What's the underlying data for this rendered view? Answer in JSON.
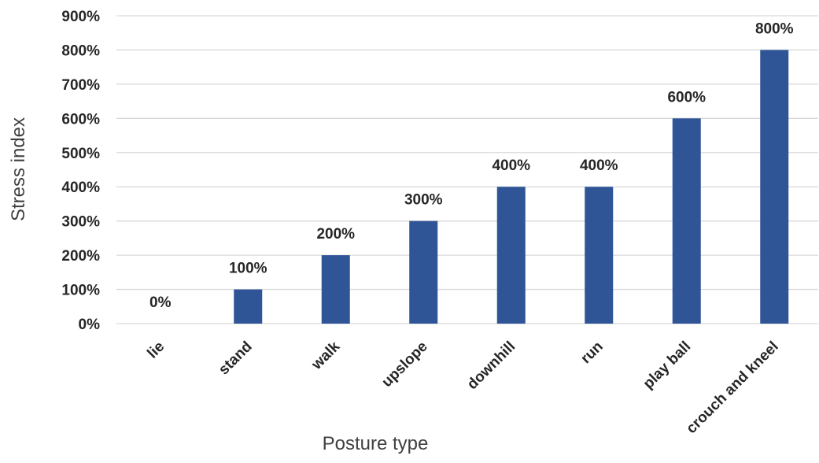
{
  "chart_data": {
    "type": "bar",
    "title": "",
    "xlabel": "Posture type",
    "ylabel": "Stress index",
    "categories": [
      "lie",
      "stand",
      "walk",
      "upslope",
      "downhill",
      "run",
      "play ball",
      "crouch and kneel"
    ],
    "values": [
      0,
      100,
      200,
      300,
      400,
      400,
      600,
      800
    ],
    "data_labels": [
      "0%",
      "100%",
      "200%",
      "300%",
      "400%",
      "400%",
      "600%",
      "800%"
    ],
    "ylim": [
      0,
      900
    ],
    "yticks": [
      0,
      100,
      200,
      300,
      400,
      500,
      600,
      700,
      800,
      900
    ],
    "ytick_labels": [
      "0%",
      "100%",
      "200%",
      "300%",
      "400%",
      "500%",
      "600%",
      "700%",
      "800%",
      "900%"
    ],
    "grid": true,
    "legend": "none",
    "bar_color": "#2f5597"
  }
}
